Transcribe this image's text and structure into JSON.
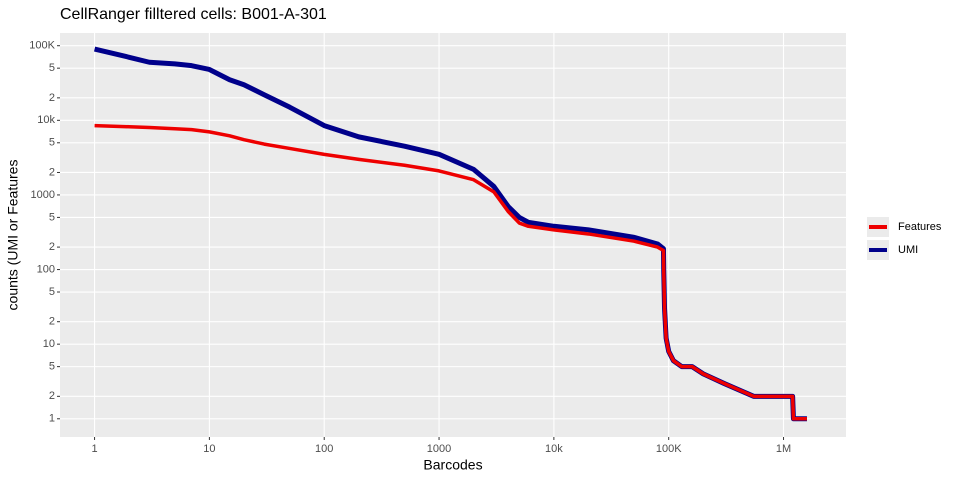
{
  "chart_data": {
    "type": "line",
    "title": "CellRanger filltered cells: B001-A-301",
    "x_label": "Barcodes",
    "y_label": "counts (UMI or Features",
    "log_x": true,
    "log_y": true,
    "grid": true,
    "legend_position": "right",
    "xlim": [
      0.5,
      3500000
    ],
    "ylim": [
      0.57,
      148000
    ],
    "xticks": [
      1,
      10,
      100,
      1000,
      {
        "value": 10000,
        "label": "10k"
      },
      {
        "value": 100000,
        "label": "100K"
      },
      {
        "value": 1000000,
        "label": "1M"
      }
    ],
    "yticks": [
      {
        "value": 100000,
        "label": "100K"
      },
      {
        "value": 50000,
        "label": "5"
      },
      {
        "value": 20000,
        "label": "2"
      },
      {
        "value": 10000,
        "label": "10k"
      },
      {
        "value": 5000,
        "label": "5"
      },
      {
        "value": 2000,
        "label": "2"
      },
      1000,
      {
        "value": 500,
        "label": "5"
      },
      {
        "value": 200,
        "label": "2"
      },
      100,
      {
        "value": 50,
        "label": "5"
      },
      {
        "value": 20,
        "label": "2"
      },
      10,
      5,
      2,
      1
    ],
    "x": [
      1,
      2,
      3,
      5,
      7,
      10,
      15,
      20,
      30,
      50,
      100,
      200,
      500,
      1000,
      2000,
      3000,
      4000,
      5000,
      6000,
      10000,
      20000,
      50000,
      80000,
      90000,
      90500,
      92000,
      95000,
      100000,
      110000,
      130000,
      160000,
      200000,
      300000,
      550000,
      1200000,
      1220000,
      1600000
    ],
    "series": [
      {
        "name": "UMI",
        "color": "#00008b",
        "values": [
          90000,
          70000,
          60000,
          57000,
          54000,
          48000,
          35000,
          30000,
          22000,
          15000,
          8500,
          6000,
          4500,
          3500,
          2200,
          1300,
          700,
          500,
          430,
          380,
          340,
          270,
          220,
          190,
          100,
          30,
          12,
          8,
          6,
          5,
          5,
          4,
          3,
          2,
          2,
          1,
          1
        ]
      },
      {
        "name": "Features",
        "color": "#ee0000",
        "values": [
          8500,
          8200,
          8000,
          7700,
          7500,
          7000,
          6200,
          5500,
          4800,
          4200,
          3500,
          3000,
          2500,
          2100,
          1600,
          1100,
          600,
          420,
          380,
          340,
          300,
          240,
          200,
          180,
          100,
          30,
          12,
          8,
          6,
          5,
          5,
          4,
          3,
          2,
          2,
          1,
          1
        ]
      }
    ]
  }
}
